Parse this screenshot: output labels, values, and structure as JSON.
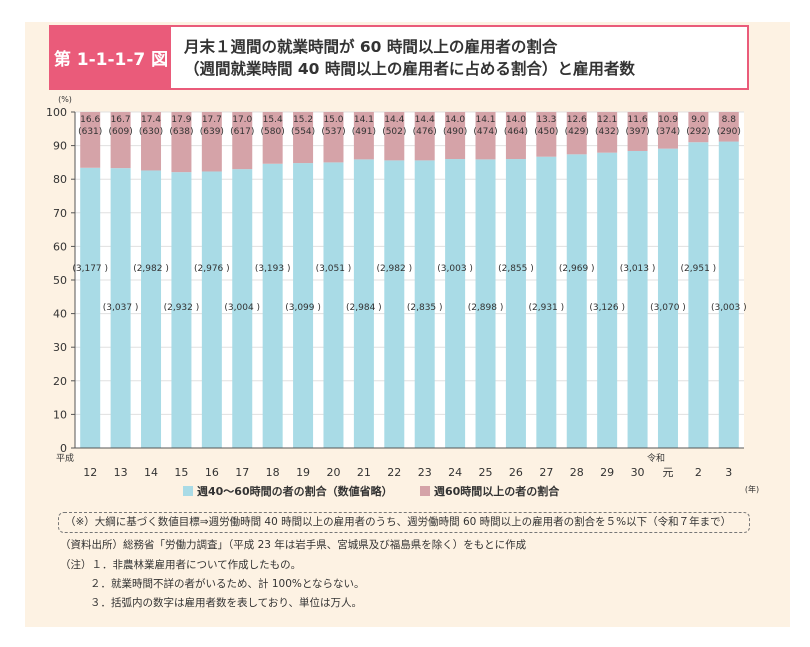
{
  "figure": {
    "number": "第 1-1-1-7 図",
    "title_line1": "月末１週間の就業時間が 60 時間以上の雇用者の割合",
    "title_line2": "（週間就業時間 40 時間以上の雇用者に占める割合）と雇用者数"
  },
  "chart_data": {
    "type": "bar",
    "stacked": true,
    "yunit": "(%)",
    "xunit": "(年)",
    "ylim": [
      0,
      100
    ],
    "yticks": [
      0,
      10,
      20,
      30,
      40,
      50,
      60,
      70,
      80,
      90,
      100
    ],
    "categories": [
      "12",
      "13",
      "14",
      "15",
      "16",
      "17",
      "18",
      "19",
      "20",
      "21",
      "22",
      "23",
      "24",
      "25",
      "26",
      "27",
      "28",
      "29",
      "30",
      "元",
      "2",
      "3"
    ],
    "era_labels": [
      {
        "index": 0,
        "text": "平成"
      },
      {
        "index": 19,
        "text": "令和"
      }
    ],
    "series": [
      {
        "name": "週40～60時間の者の割合（数値省略）",
        "color": "#a9dbe6",
        "values": [
          83.4,
          83.3,
          82.6,
          82.1,
          82.3,
          83.0,
          84.6,
          84.8,
          85.0,
          85.9,
          85.6,
          85.6,
          86.0,
          85.9,
          86.0,
          86.7,
          87.4,
          87.9,
          88.4,
          89.1,
          91.0,
          91.2
        ],
        "labels": [
          "(3,177 )",
          "(3,037 )",
          "(2,982 )",
          "(2,932 )",
          "(2,976 )",
          "(3,004 )",
          "(3,193 )",
          "(3,099 )",
          "(3,051 )",
          "(2,984 )",
          "(2,982 )",
          "(2,835 )",
          "(3,003 )",
          "(2,898 )",
          "(2,855 )",
          "(2,931 )",
          "(2,969 )",
          "(3,126 )",
          "(3,013 )",
          "(3,070 )",
          "(2,951 )",
          "(3,003 )"
        ]
      },
      {
        "name": "週60時間以上の者の割合",
        "color": "#d5a3a8",
        "values": [
          16.6,
          16.7,
          17.4,
          17.9,
          17.7,
          17.0,
          15.4,
          15.2,
          15.0,
          14.1,
          14.4,
          14.4,
          14.0,
          14.1,
          14.0,
          13.3,
          12.6,
          12.1,
          11.6,
          10.9,
          9.0,
          8.8
        ],
        "value_labels": [
          "16.6",
          "16.7",
          "17.4",
          "17.9",
          "17.7",
          "17.0",
          "15.4",
          "15.2",
          "15.0",
          "14.1",
          "14.4",
          "14.4",
          "14.0",
          "14.1",
          "14.0",
          "13.3",
          "12.6",
          "12.1",
          "11.6",
          "10.9",
          "9.0",
          "8.8"
        ],
        "count_labels": [
          "(631)",
          "(609)",
          "(630)",
          "(638)",
          "(639)",
          "(617)",
          "(580)",
          "(554)",
          "(537)",
          "(491)",
          "(502)",
          "(476)",
          "(490)",
          "(474)",
          "(464)",
          "(450)",
          "(429)",
          "(432)",
          "(397)",
          "(374)",
          "(292)",
          "(290)"
        ]
      }
    ],
    "legend_position": "bottom"
  },
  "notes": {
    "objective": "（※）大綱に基づく数値目標⇒週労働時間 40 時間以上の雇用者のうち、週労働時間 60 時間以上の雇用者の割合を５%以下（令和７年まで）",
    "source": "（資料出所）総務省「労働力調査」（平成 23 年は岩手県、宮城県及び福島県を除く）をもとに作成",
    "note1": "（注）１．非農林業雇用者について作成したもの。",
    "note2": "２．就業時間不詳の者がいるため、計 100%とならない。",
    "note3": "３．括弧内の数字は雇用者数を表しており、単位は万人。"
  }
}
